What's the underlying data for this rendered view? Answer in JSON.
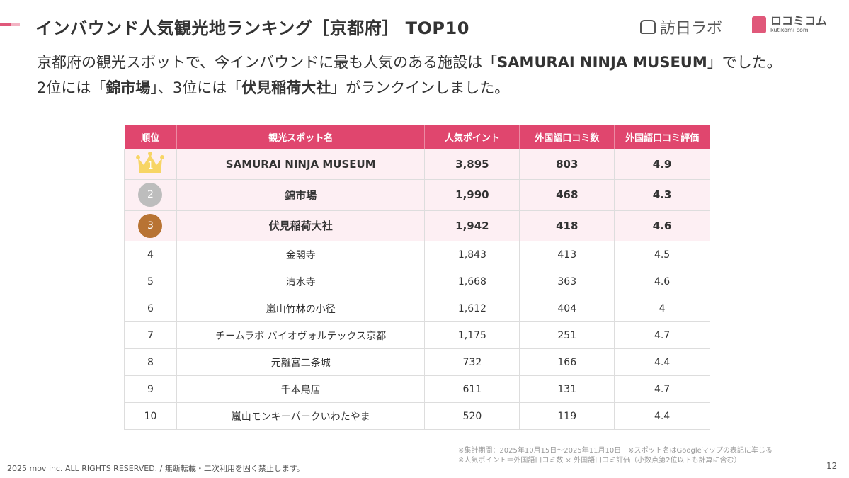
{
  "header": {
    "title": "インバウンド人気観光地ランキング［京都府］ TOP10",
    "logo1": "訪日ラボ",
    "logo2": "ロコミコム",
    "logo2_sub": "kutikomi com",
    "brand_color": "#e0466e"
  },
  "lead": {
    "l1_pre": "京都府の観光スポットで、今インバウンドに最も人気のある施設は「",
    "l1_bold": "SAMURAI NINJA MUSEUM",
    "l1_post": "」でした。",
    "l2_a": "2位には「",
    "l2_b": "錦市場",
    "l2_c": "」、3位には「",
    "l2_d": "伏見稲荷大社",
    "l2_e": "」がランクインしました。"
  },
  "table": {
    "headers": [
      "順位",
      "観光スポット名",
      "人気ポイント",
      "外国語口コミ数",
      "外国語口コミ評価"
    ],
    "rows": [
      {
        "rank": "1",
        "name": "SAMURAI NINJA MUSEUM",
        "points": "3,895",
        "reviews": "803",
        "rating": "4.9"
      },
      {
        "rank": "2",
        "name": "錦市場",
        "points": "1,990",
        "reviews": "468",
        "rating": "4.3"
      },
      {
        "rank": "3",
        "name": "伏見稲荷大社",
        "points": "1,942",
        "reviews": "418",
        "rating": "4.6"
      },
      {
        "rank": "4",
        "name": "金閣寺",
        "points": "1,843",
        "reviews": "413",
        "rating": "4.5"
      },
      {
        "rank": "5",
        "name": "清水寺",
        "points": "1,668",
        "reviews": "363",
        "rating": "4.6"
      },
      {
        "rank": "6",
        "name": "嵐山竹林の小径",
        "points": "1,612",
        "reviews": "404",
        "rating": "4"
      },
      {
        "rank": "7",
        "name": "チームラボ バイオヴォルテックス京都",
        "points": "1,175",
        "reviews": "251",
        "rating": "4.7"
      },
      {
        "rank": "8",
        "name": "元離宮二条城",
        "points": "732",
        "reviews": "166",
        "rating": "4.4"
      },
      {
        "rank": "9",
        "name": "千本鳥居",
        "points": "611",
        "reviews": "131",
        "rating": "4.7"
      },
      {
        "rank": "10",
        "name": "嵐山モンキーパークいわたやま",
        "points": "520",
        "reviews": "119",
        "rating": "4.4"
      }
    ]
  },
  "notes": {
    "n1": "※集計期間：2025年10月15日～2025年11月10日　※スポット名はGoogleマップの表記に準じる",
    "n2": "※人気ポイント＝外国語口コミ数 × 外国語口コミ評価（小数点第2位以下も計算に含む）"
  },
  "footer": {
    "copyright": "2025 mov inc. ALL RIGHTS RESERVED. / 無断転載・二次利用を固く禁止します。",
    "page": "12"
  }
}
